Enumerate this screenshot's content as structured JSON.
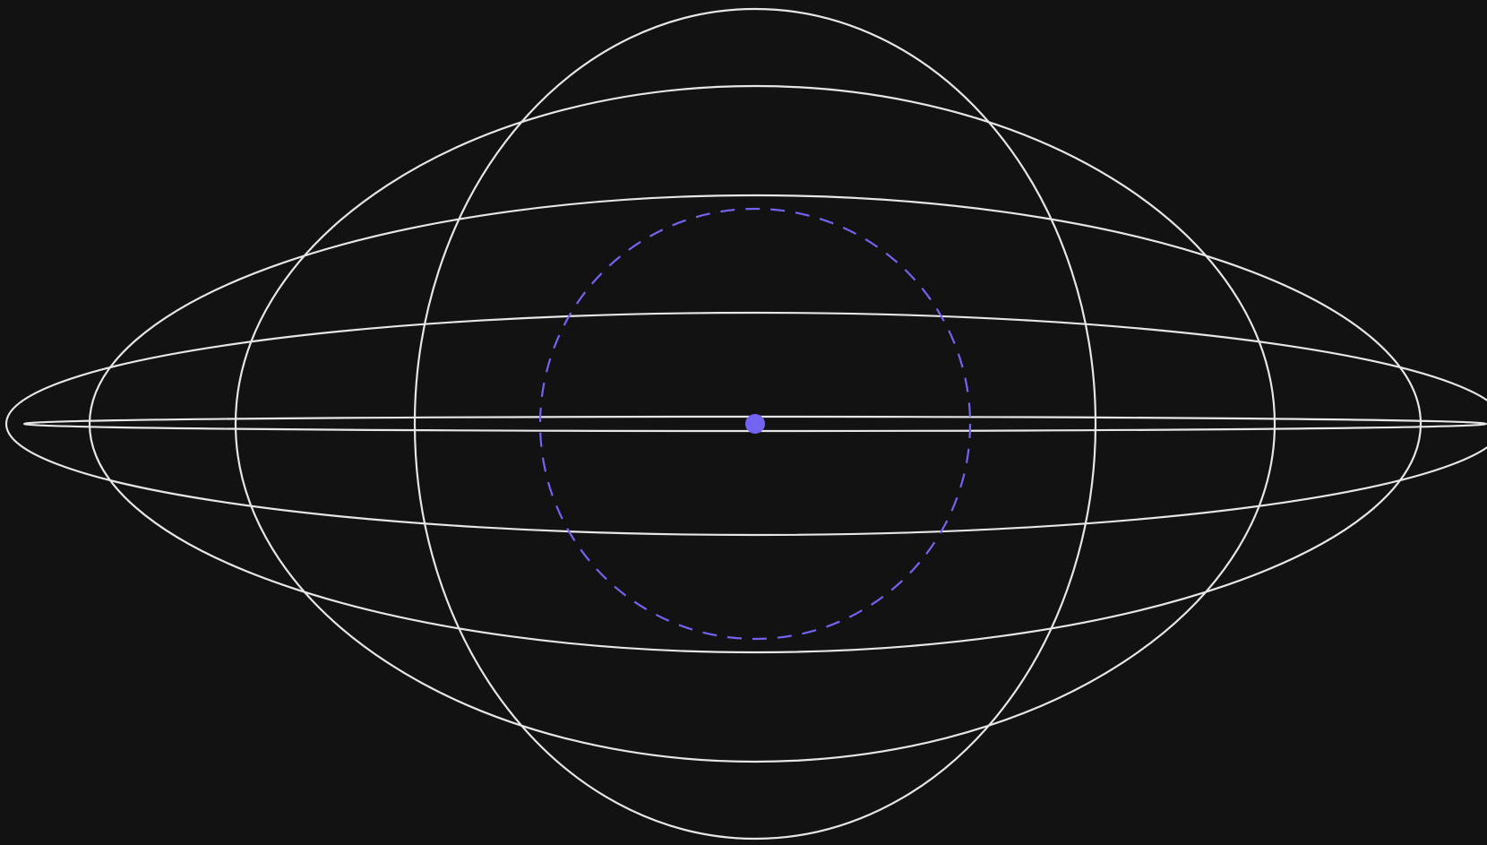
{
  "colors": {
    "background": "#121212",
    "ellipse_stroke": "#e6e6e6",
    "accent": "#7264f0"
  },
  "diagram": {
    "ellipses": [
      {
        "id": "ellipse-1",
        "name": "ellipse-ring-1"
      },
      {
        "id": "ellipse-2",
        "name": "ellipse-ring-2"
      },
      {
        "id": "ellipse-3",
        "name": "ellipse-ring-3"
      },
      {
        "id": "ellipse-4",
        "name": "ellipse-ring-4"
      },
      {
        "id": "ellipse-5",
        "name": "ellipse-ring-5"
      }
    ],
    "guide_circle": {
      "style": "dashed"
    },
    "center_point": {
      "style": "filled"
    }
  }
}
